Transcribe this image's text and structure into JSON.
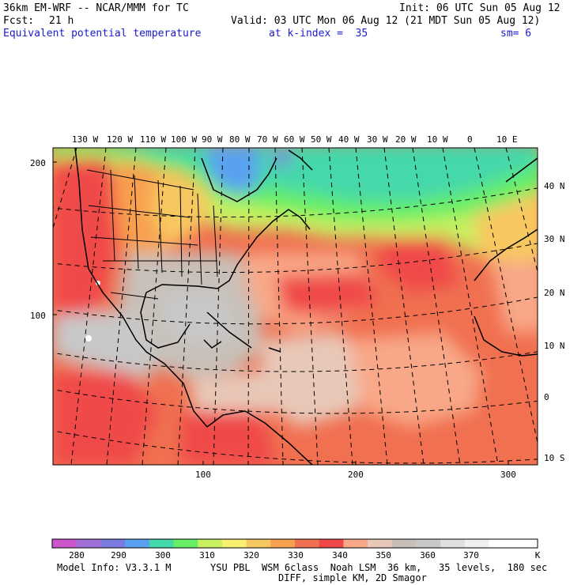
{
  "header": {
    "model_title": "36km EM-WRF -- NCAR/MMM for TC",
    "init": "Init: 06 UTC Sun 05 Aug 12",
    "fcst_label": "Fcst:",
    "fcst_value": "21 h",
    "valid": "Valid: 03 UTC Mon 06 Aug 12 (21 MDT Sun 05 Aug 12)",
    "field": "Equivalent potential temperature",
    "level": "at k-index =  35",
    "smooth": "sm= 6"
  },
  "map": {
    "top_lon_labels": [
      "130 W",
      "120 W",
      "110 W",
      "100 W",
      "90 W",
      "80 W",
      "70 W",
      "60 W",
      "50 W",
      "40 W",
      "30 W",
      "20 W",
      "10 W",
      "0",
      "10 E"
    ],
    "right_lat_labels": [
      "40 N",
      "30 N",
      "20 N",
      "10 N",
      "0",
      "10 S"
    ],
    "left_y_labels": [
      "200",
      "100"
    ],
    "bottom_x_labels": [
      "100",
      "200",
      "300"
    ]
  },
  "colorbar": {
    "unit": "K",
    "labels": [
      "280",
      "290",
      "300",
      "310",
      "320",
      "330",
      "340",
      "350",
      "360",
      "370"
    ],
    "colors": [
      "#cc55cc",
      "#a070d8",
      "#7a7ae0",
      "#5aa0f0",
      "#44d8aa",
      "#66ee66",
      "#c8f060",
      "#f8f070",
      "#f8c860",
      "#f8a050",
      "#f07050",
      "#f04848",
      "#f8a888",
      "#e8c8b8",
      "#c8c0b8",
      "#c8c8c8",
      "#e0e0e0",
      "#f0f0f0",
      "#ffffff",
      "#ffffff"
    ]
  },
  "footer": {
    "model_info": "Model Info: V3.3.1 M",
    "physics": "YSU PBL  WSM 6class  Noah LSM  36 km,   35 levels,  180 sec",
    "diff": "DIFF, simple KM, 2D Smagor"
  }
}
